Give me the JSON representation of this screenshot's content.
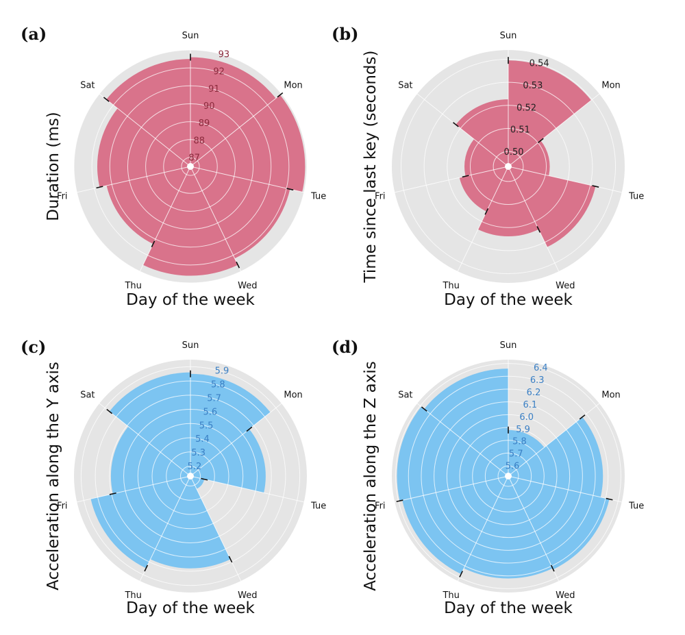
{
  "chart_data": [
    {
      "type": "bar",
      "projection": "polar",
      "panel_label": "(a)",
      "xlabel": "Day of the week",
      "ylabel": "Duration (ms)",
      "categories": [
        "Sun",
        "Mon",
        "Tue",
        "Wed",
        "Thu",
        "Fri",
        "Sat"
      ],
      "values": [
        92.6,
        92.9,
        92.2,
        92.6,
        91.3,
        91.7,
        92.5
      ],
      "rlim": [
        86.5,
        93.0
      ],
      "rticks": [
        "87",
        "88",
        "89",
        "90",
        "91",
        "92",
        "93"
      ],
      "rtick_color": "#8b2a3c",
      "bar_color": "#d9738b",
      "grid": true
    },
    {
      "type": "bar",
      "projection": "polar",
      "panel_label": "(b)",
      "xlabel": "Day of the week",
      "ylabel": "Time since last key (seconds)",
      "categories": [
        "Sun",
        "Mon",
        "Tue",
        "Wed",
        "Thu",
        "Fri",
        "Sat"
      ],
      "values": [
        0.5395,
        0.5115,
        0.5323,
        0.5238,
        0.5152,
        0.5125,
        0.5226
      ],
      "rlim": [
        0.4935,
        0.544
      ],
      "rticks": [
        "0.50",
        "0.51",
        "0.52",
        "0.53",
        "0.54"
      ],
      "rtick_color": "#222222",
      "bar_color": "#d9738b",
      "grid": true
    },
    {
      "type": "bar",
      "projection": "polar",
      "panel_label": "(c)",
      "xlabel": "Day of the week",
      "ylabel": "Acceleration along the Y axis",
      "categories": [
        "Sun",
        "Mon",
        "Tue",
        "Wed",
        "Thu",
        "Fri",
        "Sat"
      ],
      "values": [
        5.85,
        5.66,
        5.23,
        5.78,
        5.85,
        5.69,
        5.86
      ],
      "rlim": [
        5.13,
        5.95
      ],
      "rticks": [
        "5.2",
        "5.3",
        "5.4",
        "5.5",
        "5.6",
        "5.7",
        "5.8",
        "5.9"
      ],
      "rtick_color": "#3a7fc4",
      "bar_color": "#7cc4f1",
      "grid": true
    },
    {
      "type": "bar",
      "projection": "polar",
      "panel_label": "(d)",
      "xlabel": "Day of the week",
      "ylabel": "Acceleration along the Z axis",
      "categories": [
        "Sun",
        "Mon",
        "Tue",
        "Wed",
        "Thu",
        "Fri",
        "Sat"
      ],
      "values": [
        5.88,
        6.26,
        6.33,
        6.32,
        6.37,
        6.39,
        6.36
      ],
      "rlim": [
        5.52,
        6.43
      ],
      "rticks": [
        "5.6",
        "5.7",
        "5.8",
        "5.9",
        "6.0",
        "6.1",
        "6.2",
        "6.3",
        "6.4"
      ],
      "rtick_color": "#3a7fc4",
      "bar_color": "#7cc4f1",
      "grid": true
    }
  ]
}
